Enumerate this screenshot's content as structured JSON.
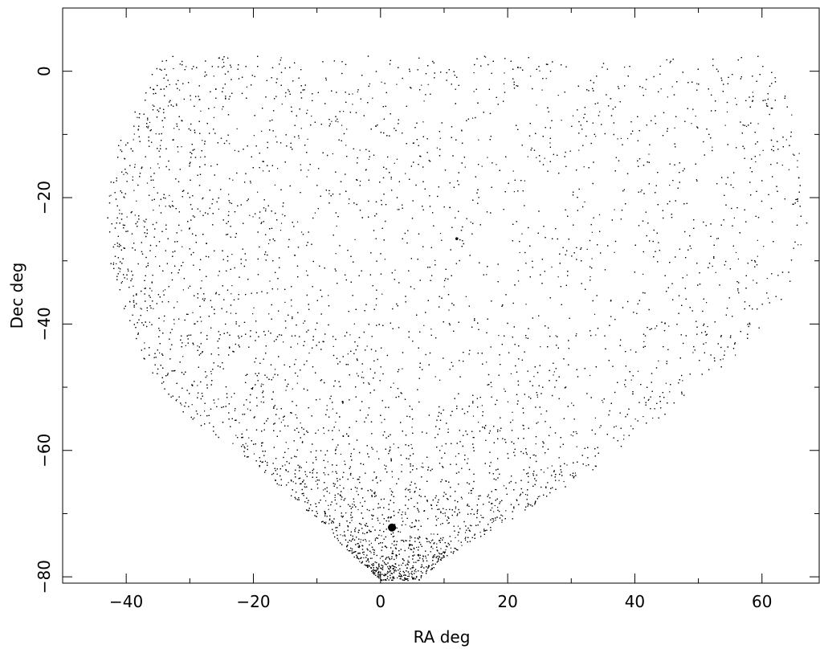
{
  "chart_data": {
    "type": "scatter",
    "xlabel": "RA deg",
    "ylabel": "Dec deg",
    "xlim": [
      -50,
      69
    ],
    "ylim": [
      -81,
      10
    ],
    "xticks": [
      -40,
      -20,
      0,
      20,
      40,
      60
    ],
    "yticks": [
      0,
      -20,
      -40,
      -60,
      -80
    ],
    "grid": false,
    "region": {
      "dec_top": 2.5,
      "dec_bottom": -80.5,
      "left_edge": [
        [
          -40,
          2.5
        ],
        [
          -35,
          2.5
        ],
        [
          -38,
          -5
        ],
        [
          -41.5,
          -12
        ],
        [
          -43,
          -20
        ],
        [
          -43,
          -27
        ],
        [
          -42,
          -35
        ],
        [
          -38.5,
          -45
        ],
        [
          -31,
          -54
        ],
        [
          -20,
          -62
        ],
        [
          -11,
          -70
        ],
        [
          -4,
          -77
        ],
        [
          0,
          -80.5
        ]
      ],
      "right_edge": [
        [
          58,
          2.5
        ],
        [
          62,
          2.5
        ],
        [
          64.5,
          -5
        ],
        [
          66,
          -12
        ],
        [
          67,
          -18
        ],
        [
          67,
          -26
        ],
        [
          64,
          -35
        ],
        [
          56,
          -45
        ],
        [
          45,
          -54
        ],
        [
          35,
          -62
        ],
        [
          22,
          -70
        ],
        [
          10,
          -77
        ],
        [
          6,
          -80.5
        ]
      ]
    },
    "clusters": [
      {
        "ra": 1.8,
        "dec": -72.2,
        "marker": "filled-circle"
      },
      {
        "ra": 12,
        "dec": -26.5,
        "marker": "dot"
      }
    ],
    "points_note": "dense scatter of star positions, denser near left/lower boundary"
  }
}
